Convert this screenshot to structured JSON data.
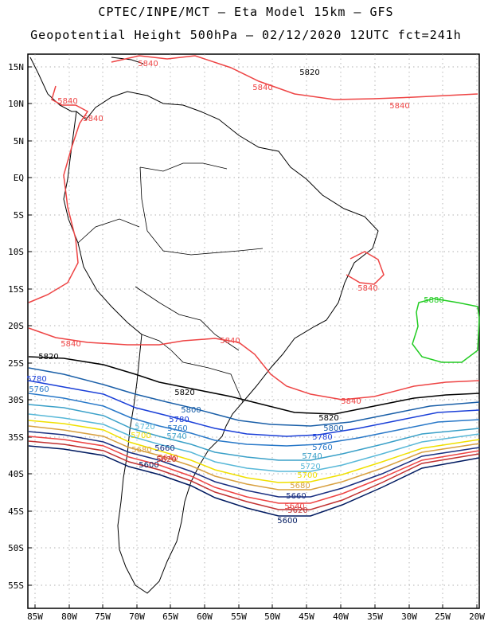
{
  "title_line1": "CPTEC/INPE/MCT –  Eta Model 15km – GFS",
  "title_line2": "Geopotential Height 500hPa – 02/12/2020 12UTC fct=241h",
  "lat_labels": [
    "15N",
    "10N",
    "5N",
    "EQ",
    "5S",
    "10S",
    "15S",
    "20S",
    "25S",
    "30S",
    "35S",
    "40S",
    "45S",
    "50S",
    "55S"
  ],
  "lon_labels": [
    "85W",
    "80W",
    "75W",
    "70W",
    "65W",
    "60W",
    "55W",
    "50W",
    "45W",
    "40W",
    "35W",
    "30W",
    "25W",
    "20W"
  ],
  "contour_labels": {
    "c5880": "5880",
    "c5840": "5840",
    "c5820": "5820",
    "c5800": "5800",
    "c5780": "5780",
    "c5760": "5760",
    "c5740": "5740",
    "c5720": "5720",
    "c5700": "5700",
    "c5680": "5680",
    "c5660": "5660",
    "c5640": "5640",
    "c5620": "5620",
    "c5600": "5600"
  },
  "colors": {
    "c5880": "#22cc22",
    "c5840": "#ee4444",
    "c5820": "#000000",
    "c5800": "#1a5fa8",
    "c5780": "#1a3fd8",
    "c5760": "#2878c8",
    "c5740": "#3aa0c8",
    "c5720": "#58b8d8",
    "c5700": "#f0e000",
    "c5680": "#d8a040",
    "c5660": "#1a2f80",
    "c5640": "#ee4444",
    "c5620": "#c03030",
    "c5600": "#001a60"
  }
}
